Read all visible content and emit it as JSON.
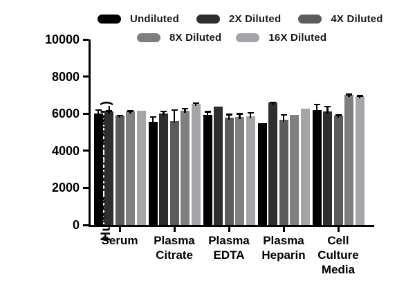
{
  "figure": {
    "background": "#ffffff",
    "axis_color": "#000000",
    "text_color": "#000000"
  },
  "legend": {
    "position": "top",
    "items": [
      {
        "label": "Undiluted",
        "color": "#000000",
        "row": 0
      },
      {
        "label": "2X Diluted",
        "color": "#2e2e2e",
        "row": 0
      },
      {
        "label": "4X Diluted",
        "color": "#5c5c5c",
        "row": 0
      },
      {
        "label": "8X Diluted",
        "color": "#7f7f7f",
        "row": 1
      },
      {
        "label": "16X Diluted",
        "color": "#a5a5a9",
        "row": 1
      }
    ]
  },
  "chart_data": {
    "type": "bar",
    "title": "",
    "xlabel": "",
    "ylabel": "Human BMP2 (pg/mL)",
    "ylim": [
      0,
      10000
    ],
    "yticks": [
      0,
      2000,
      4000,
      6000,
      8000,
      10000
    ],
    "grid": false,
    "legend_position": "top",
    "error_bars": "upper only",
    "categories": [
      "Serum",
      "Plasma Citrate",
      "Plasma EDTA",
      "Plasma Heparin",
      "Cell Culture Media"
    ],
    "category_label_lines": [
      "Serum",
      "Plasma\nCitrate",
      "Plasma\nEDTA",
      "Plasma\nHeparin",
      "Cell\nCulture\nMedia"
    ],
    "series": [
      {
        "name": "Undiluted",
        "color": "#000000",
        "values": [
          6000,
          5550,
          5940,
          5470,
          6190
        ],
        "errors": [
          250,
          310,
          200,
          0,
          340
        ]
      },
      {
        "name": "2X Diluted",
        "color": "#2e2e2e",
        "values": [
          6120,
          6010,
          6370,
          6600,
          6110
        ],
        "errors": [
          60,
          150,
          0,
          60,
          310
        ]
      },
      {
        "name": "4X Diluted",
        "color": "#5c5c5c",
        "values": [
          5880,
          5610,
          5780,
          5690,
          5900
        ],
        "errors": [
          70,
          630,
          210,
          290,
          70
        ]
      },
      {
        "name": "8X Diluted",
        "color": "#7f7f7f",
        "values": [
          6130,
          6150,
          5820,
          5940,
          7020
        ],
        "errors": [
          60,
          170,
          220,
          0,
          60
        ]
      },
      {
        "name": "16X Diluted",
        "color": "#a5a5a9",
        "values": [
          6140,
          6520,
          5850,
          6280,
          6950
        ],
        "errors": [
          0,
          90,
          250,
          0,
          60
        ]
      }
    ]
  }
}
